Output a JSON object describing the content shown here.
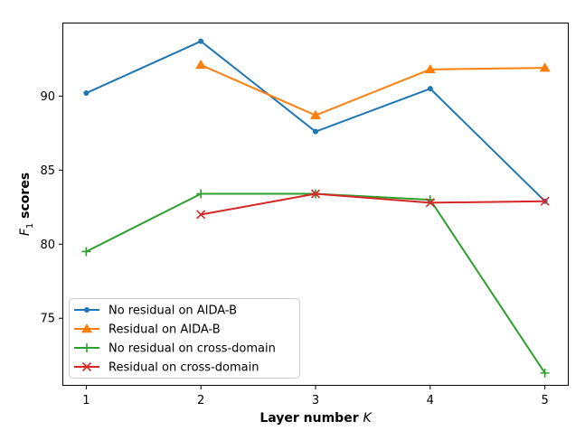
{
  "chart_data": {
    "type": "line",
    "xlabel": "Layer number",
    "xlabel_var": "K",
    "ylabel": "scores",
    "ylabel_var": "F",
    "ylabel_sub": "1",
    "xlim": [
      0.8,
      5.2
    ],
    "ylim": [
      70.5,
      94.9
    ],
    "xticks": [
      1,
      2,
      3,
      4,
      5
    ],
    "yticks": [
      75,
      80,
      85,
      90
    ],
    "grid": false,
    "legend_position": "lower-left",
    "series": [
      {
        "name": "No residual on AIDA-B",
        "color": "#1f77b4",
        "marker": "dot",
        "x": [
          1,
          2,
          3,
          4,
          5
        ],
        "y": [
          90.2,
          93.7,
          87.6,
          90.5,
          82.9
        ]
      },
      {
        "name": "Residual on AIDA-B",
        "color": "#ff7f0e",
        "marker": "triangle",
        "x": [
          2,
          3,
          4,
          5
        ],
        "y": [
          92.1,
          88.7,
          91.8,
          91.9
        ]
      },
      {
        "name": "No residual on cross-domain",
        "color": "#2ca02c",
        "marker": "plus",
        "x": [
          1,
          2,
          3,
          4,
          5
        ],
        "y": [
          79.5,
          83.4,
          83.4,
          83.0,
          71.3
        ]
      },
      {
        "name": "Residual on cross-domain",
        "color": "#d62728",
        "marker": "x",
        "x": [
          2,
          3,
          4,
          5
        ],
        "y": [
          82.0,
          83.4,
          82.8,
          82.9
        ]
      }
    ]
  }
}
